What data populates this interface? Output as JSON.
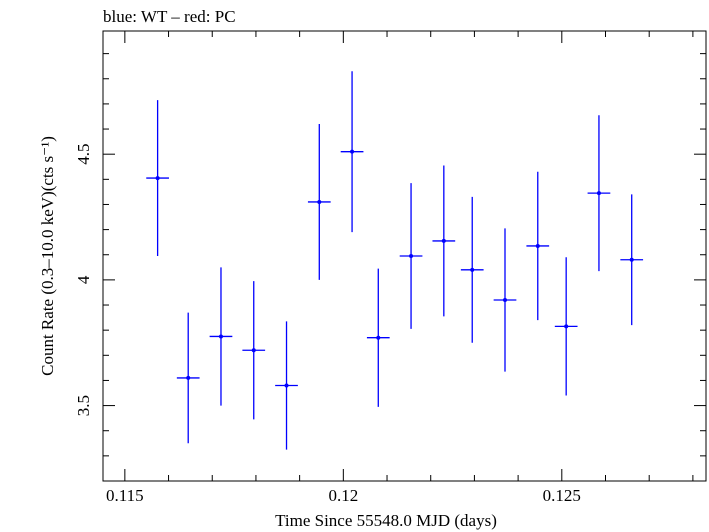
{
  "chart_data": {
    "type": "scatter",
    "title": "blue: WT – red: PC",
    "xlabel": "Time Since 55548.0 MJD (days)",
    "ylabel": "Count Rate (0.3–10.0 keV)(cts s⁻¹)",
    "xlim": [
      0.1145,
      0.1283
    ],
    "ylim": [
      3.2,
      4.99
    ],
    "xticks": [
      0.115,
      0.12,
      0.125
    ],
    "xtick_labels": [
      "0.115",
      "0.12",
      "0.125"
    ],
    "yticks": [
      3.5,
      4,
      4.5
    ],
    "ytick_labels": [
      "3.5",
      "4",
      "4.5"
    ],
    "grid": false,
    "legend": "none",
    "series": [
      {
        "color": "#0000ff",
        "points": [
          {
            "x": 0.11575,
            "xerr": 0.00026,
            "y": 4.405,
            "yerr": 0.31
          },
          {
            "x": 0.11645,
            "xerr": 0.00026,
            "y": 3.61,
            "yerr": 0.26
          },
          {
            "x": 0.1172,
            "xerr": 0.00026,
            "y": 3.775,
            "yerr": 0.275
          },
          {
            "x": 0.11795,
            "xerr": 0.00026,
            "y": 3.72,
            "yerr": 0.275
          },
          {
            "x": 0.1187,
            "xerr": 0.00026,
            "y": 3.58,
            "yerr": 0.255
          },
          {
            "x": 0.11945,
            "xerr": 0.00026,
            "y": 4.31,
            "yerr": 0.31
          },
          {
            "x": 0.1202,
            "xerr": 0.00026,
            "y": 4.51,
            "yerr": 0.32
          },
          {
            "x": 0.1208,
            "xerr": 0.00026,
            "y": 3.77,
            "yerr": 0.275
          },
          {
            "x": 0.12155,
            "xerr": 0.00026,
            "y": 4.095,
            "yerr": 0.29
          },
          {
            "x": 0.1223,
            "xerr": 0.00026,
            "y": 4.155,
            "yerr": 0.3
          },
          {
            "x": 0.12295,
            "xerr": 0.00026,
            "y": 4.04,
            "yerr": 0.29
          },
          {
            "x": 0.1237,
            "xerr": 0.00026,
            "y": 3.92,
            "yerr": 0.285
          },
          {
            "x": 0.12445,
            "xerr": 0.00026,
            "y": 4.135,
            "yerr": 0.295
          },
          {
            "x": 0.1251,
            "xerr": 0.00026,
            "y": 3.815,
            "yerr": 0.275
          },
          {
            "x": 0.12585,
            "xerr": 0.00026,
            "y": 4.345,
            "yerr": 0.31
          },
          {
            "x": 0.1266,
            "xerr": 0.00026,
            "y": 4.08,
            "yerr": 0.26
          }
        ]
      }
    ]
  }
}
